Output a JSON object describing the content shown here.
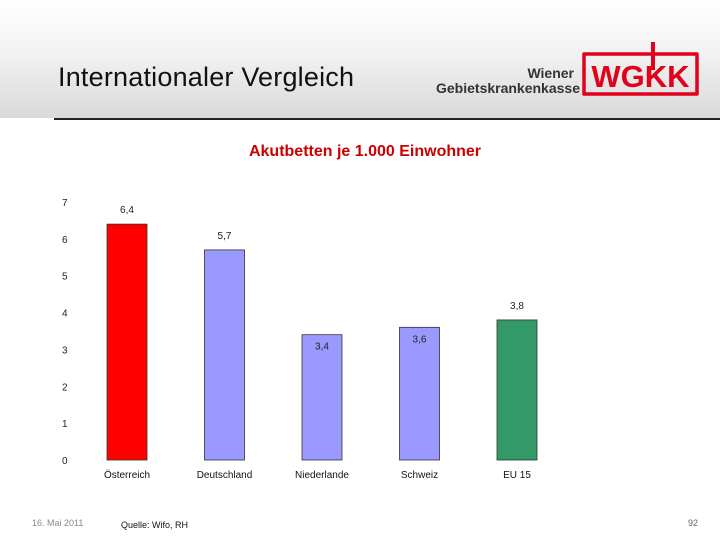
{
  "header": {
    "title": "Internationaler Vergleich",
    "logo": {
      "line1": "Wiener",
      "line2": "Gebietskrankenkasse",
      "mark": "WGKK",
      "mark_color": "#e2001a"
    }
  },
  "chart_data": {
    "type": "bar",
    "title": "Akutbetten je 1.000 Einwohner",
    "categories": [
      "Österreich",
      "Deutschland",
      "Niederlande",
      "Schweiz",
      "EU 15"
    ],
    "values": [
      6.4,
      5.7,
      3.4,
      3.6,
      3.8
    ],
    "value_labels": [
      "6,4",
      "5,7",
      "3,4",
      "3,6",
      "3,8"
    ],
    "colors": [
      "#ff0000",
      "#9999ff",
      "#9999ff",
      "#9999ff",
      "#339966"
    ],
    "ylim": [
      0,
      7
    ],
    "yticks": [
      "0",
      "1",
      "2",
      "3",
      "4",
      "5",
      "6",
      "7"
    ],
    "xlabel": "",
    "ylabel": "",
    "grid": false,
    "legend": "none"
  },
  "footer": {
    "date": "16. Mai 2011",
    "source": "Quelle: Wifo, RH",
    "page": "92"
  }
}
